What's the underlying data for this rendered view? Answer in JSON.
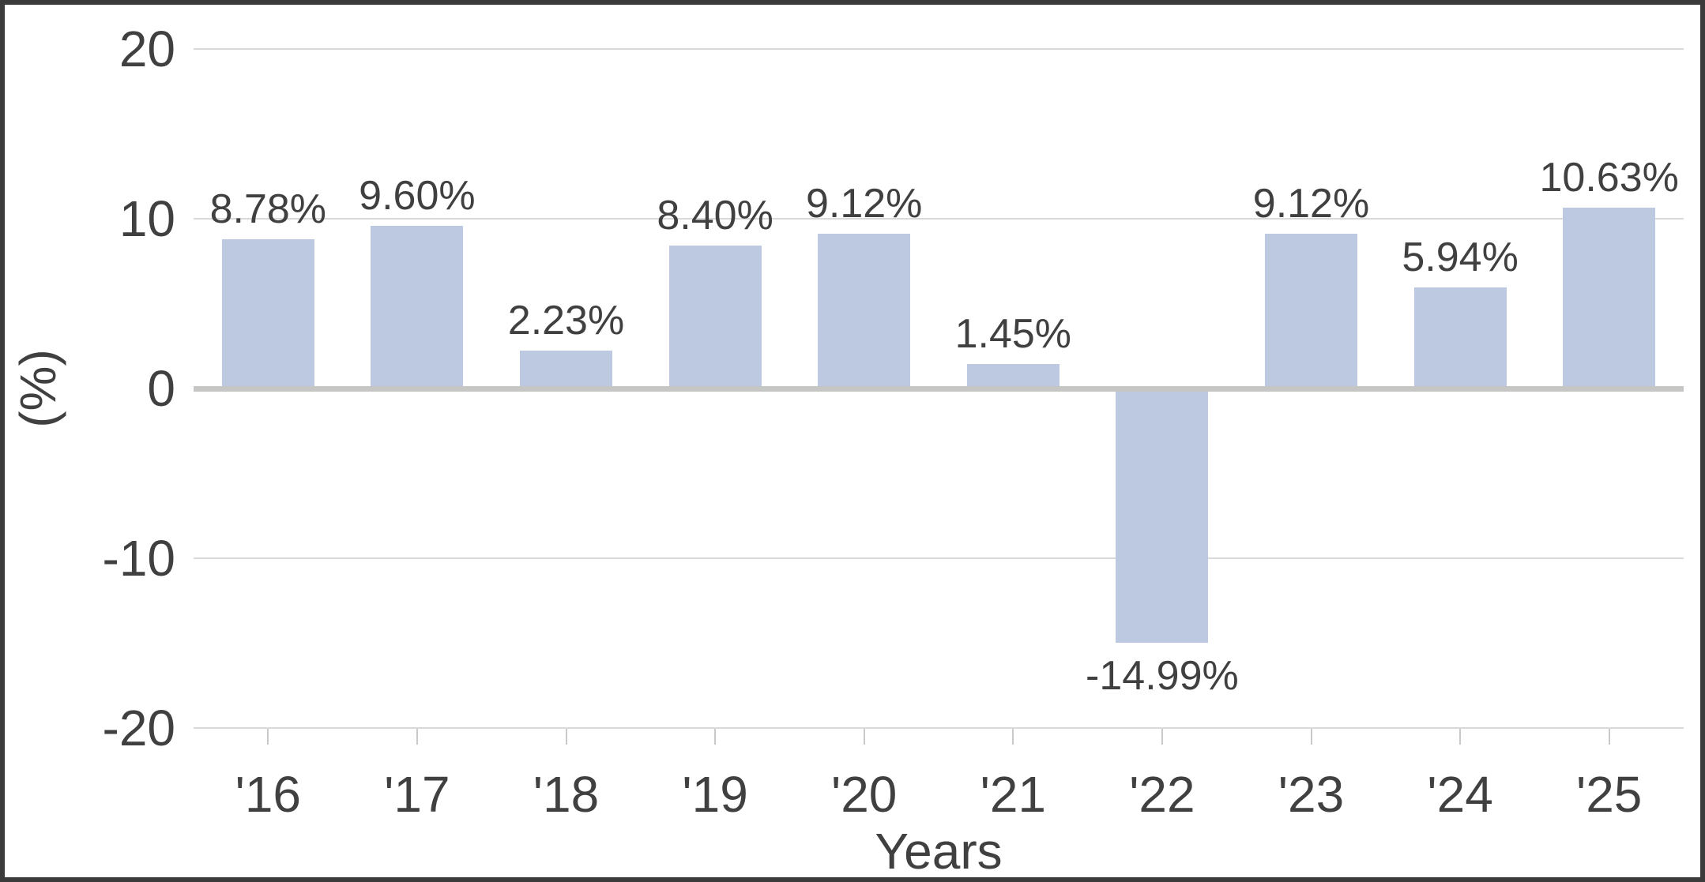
{
  "chart_data": {
    "type": "bar",
    "categories": [
      "'16",
      "'17",
      "'18",
      "'19",
      "'20",
      "'21",
      "'22",
      "'23",
      "'24",
      "'25"
    ],
    "values": [
      8.78,
      9.6,
      2.23,
      8.4,
      9.12,
      1.45,
      -14.99,
      9.12,
      5.94,
      10.63
    ],
    "data_labels": [
      "8.78%",
      "9.60%",
      "2.23%",
      "8.40%",
      "9.12%",
      "1.45%",
      "-14.99%",
      "9.12%",
      "5.94%",
      "10.63%"
    ],
    "xlabel": "Years",
    "ylabel": "(%)",
    "ylim": [
      -20,
      20
    ],
    "yticks": [
      "20",
      "10",
      "0",
      "-10",
      "-20"
    ],
    "grid": true,
    "legend": "none",
    "colors": {
      "bar": "#bdc9e1",
      "gridline": "#d9d9d9",
      "zero_baseline": "#c6c6c4",
      "tick": "#c9c9c9",
      "text": "#404040",
      "frame_border": "#3b3b3b",
      "background": "#ffffff"
    }
  }
}
